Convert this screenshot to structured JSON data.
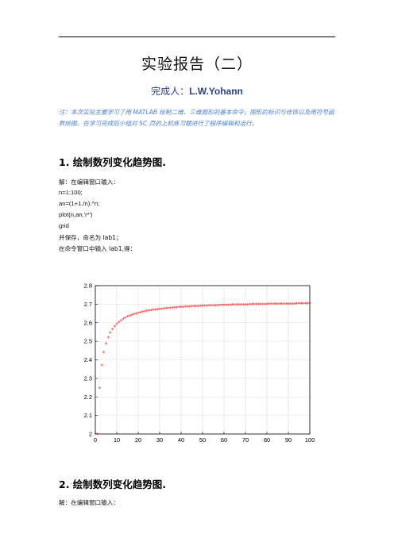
{
  "doc": {
    "title": "实验报告（二）",
    "author_label": "完成人：",
    "author_name": "L.W.Yohann",
    "note": "注：本次实验主要学习了用 MATLAB 绘制二维、三维图形的基本命令，图形的标识与修饰以及用符号函数绘图。在学习完成后小组对 SC 页的上机练习题进行了程序编辑和运行。"
  },
  "section1": {
    "heading": "1. 绘制数列变化趋势图.",
    "lines": [
      "解：在编辑窗口输入：",
      "n=1:100;",
      "an=(1+1./n).^n;",
      "plot(n,an,'r*')",
      "grid",
      "并保存，命名为 lab1；",
      "在命令窗口中输入 lab1,得："
    ]
  },
  "section2": {
    "heading": "2. 绘制数列变化趋势图.",
    "lines": [
      "解：在编辑窗口输入："
    ]
  },
  "chart_data": {
    "type": "scatter",
    "marker": "red asterisk",
    "series_color": "#ff0000",
    "grid": true,
    "xlim": [
      0,
      100
    ],
    "ylim": [
      2,
      2.8
    ],
    "x_ticks": [
      "0",
      "10",
      "20",
      "30",
      "40",
      "50",
      "60",
      "70",
      "80",
      "90",
      "100"
    ],
    "y_ticks": [
      "2",
      "2.1",
      "2.2",
      "2.3",
      "2.4",
      "2.5",
      "2.6",
      "2.7",
      "2.8"
    ],
    "x": [
      1,
      2,
      3,
      4,
      5,
      6,
      7,
      8,
      9,
      10,
      11,
      12,
      13,
      14,
      15,
      16,
      17,
      18,
      19,
      20,
      21,
      22,
      23,
      24,
      25,
      26,
      27,
      28,
      29,
      30,
      31,
      32,
      33,
      34,
      35,
      36,
      37,
      38,
      39,
      40,
      41,
      42,
      43,
      44,
      45,
      46,
      47,
      48,
      49,
      50,
      51,
      52,
      53,
      54,
      55,
      56,
      57,
      58,
      59,
      60,
      61,
      62,
      63,
      64,
      65,
      66,
      67,
      68,
      69,
      70,
      71,
      72,
      73,
      74,
      75,
      76,
      77,
      78,
      79,
      80,
      81,
      82,
      83,
      84,
      85,
      86,
      87,
      88,
      89,
      90,
      91,
      92,
      93,
      94,
      95,
      96,
      97,
      98,
      99,
      100
    ],
    "y": [
      2,
      2.25,
      2.3704,
      2.4414,
      2.4883,
      2.5216,
      2.5465,
      2.5658,
      2.5812,
      2.5937,
      2.6042,
      2.613,
      2.6206,
      2.6272,
      2.633,
      2.6379,
      2.6424,
      2.6464,
      2.65,
      2.6533,
      2.6563,
      2.659,
      2.6615,
      2.6637,
      2.6658,
      2.6678,
      2.6696,
      2.6713,
      2.6729,
      2.6743,
      2.6757,
      2.677,
      2.6782,
      2.6794,
      2.6805,
      2.6815,
      2.6825,
      2.6834,
      2.6843,
      2.6851,
      2.6859,
      2.6867,
      2.6874,
      2.6881,
      2.6888,
      2.6894,
      2.69,
      2.6906,
      2.6911,
      2.6916,
      2.6921,
      2.6926,
      2.6931,
      2.6935,
      2.694,
      2.6944,
      2.6948,
      2.6952,
      2.6956,
      2.6959,
      2.6963,
      2.6966,
      2.6969,
      2.6972,
      2.6976,
      2.6979,
      2.6981,
      2.6984,
      2.6987,
      2.699,
      2.6992,
      2.6995,
      2.6997,
      2.7,
      2.7002,
      2.7004,
      2.7006,
      2.7008,
      2.701,
      2.7012,
      2.7014,
      2.7016,
      2.7018,
      2.702,
      2.7022,
      2.7024,
      2.7025,
      2.7027,
      2.7029,
      2.703,
      2.7032,
      2.7034,
      2.7035,
      2.7036,
      2.7038,
      2.7039,
      2.7041,
      2.7042,
      2.7043,
      2.7048
    ]
  }
}
